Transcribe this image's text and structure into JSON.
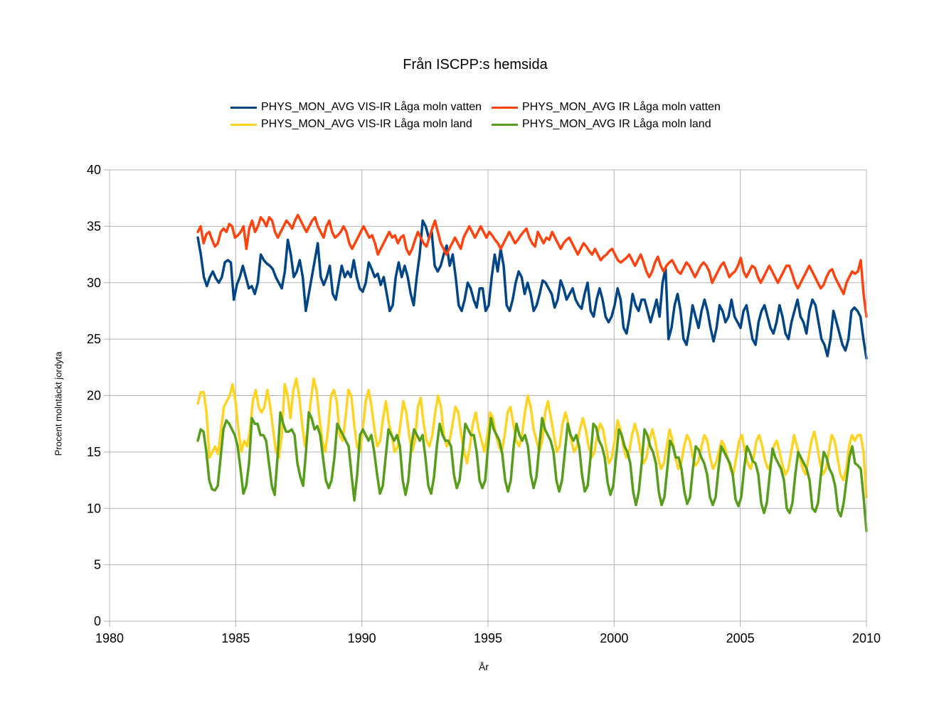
{
  "chart_data": {
    "type": "line",
    "title": "Från ISCPP:s hemsida",
    "xlabel": "År",
    "ylabel": "Procent molntäckt jordyta",
    "xlim": [
      1980,
      2010
    ],
    "ylim": [
      0,
      40
    ],
    "x_ticks": [
      "1980",
      "1985",
      "1990",
      "1995",
      "2000",
      "2005",
      "2010"
    ],
    "y_ticks": [
      "0",
      "5",
      "10",
      "15",
      "20",
      "25",
      "30",
      "35",
      "40"
    ],
    "grid": true,
    "legend_position": "top",
    "series": [
      {
        "name": "PHYS_MON_AVG VIS-IR Låga moln vatten",
        "color": "#004586",
        "x_start": 1983.5,
        "x_end": 2010.0,
        "values": [
          34.0,
          32.5,
          30.5,
          29.7,
          30.5,
          31.0,
          30.4,
          30.0,
          30.5,
          31.8,
          32.0,
          31.8,
          28.5,
          29.8,
          30.5,
          31.5,
          30.5,
          29.5,
          29.7,
          29.0,
          30.0,
          32.5,
          32.0,
          31.7,
          31.5,
          31.2,
          30.5,
          30.0,
          29.5,
          31.0,
          33.8,
          32.5,
          30.5,
          31.0,
          32.0,
          30.5,
          27.5,
          29.0,
          30.5,
          32.0,
          33.5,
          30.5,
          29.8,
          30.5,
          31.5,
          29.0,
          28.5,
          30.0,
          31.5,
          30.5,
          31.0,
          30.5,
          32.0,
          30.5,
          29.5,
          29.2,
          30.0,
          31.8,
          31.2,
          30.5,
          30.8,
          29.8,
          30.5,
          29.0,
          27.5,
          28.0,
          30.5,
          31.8,
          30.5,
          31.5,
          30.5,
          29.0,
          28.0,
          30.5,
          32.5,
          35.5,
          35.0,
          34.0,
          34.5,
          31.5,
          31.0,
          31.5,
          32.5,
          33.3,
          31.5,
          32.5,
          30.5,
          28.0,
          27.5,
          28.5,
          30.0,
          29.5,
          28.5,
          27.8,
          29.5,
          29.5,
          27.5,
          28.0,
          30.5,
          32.5,
          31.0,
          33.0,
          31.5,
          28.0,
          27.5,
          28.5,
          30.0,
          31.0,
          30.5,
          29.0,
          30.0,
          29.0,
          27.5,
          28.0,
          29.0,
          30.2,
          30.0,
          29.5,
          29.0,
          27.8,
          28.5,
          30.2,
          29.5,
          28.5,
          29.0,
          29.5,
          28.5,
          28.0,
          27.7,
          29.0,
          30.0,
          27.5,
          27.0,
          28.5,
          29.5,
          28.5,
          27.0,
          26.5,
          27.0,
          28.0,
          29.5,
          28.5,
          26.0,
          25.5,
          27.0,
          29.0,
          28.0,
          27.5,
          28.5,
          28.5,
          27.5,
          26.5,
          27.5,
          28.5,
          27.0,
          30.0,
          31.3,
          25.0,
          26.0,
          28.0,
          29.0,
          27.5,
          25.0,
          24.5,
          26.0,
          28.0,
          27.0,
          26.0,
          27.5,
          28.5,
          27.5,
          26.0,
          24.8,
          26.0,
          28.0,
          27.5,
          26.5,
          27.0,
          28.5,
          27.0,
          26.5,
          26.0,
          27.5,
          28.0,
          26.5,
          25.0,
          24.5,
          26.5,
          27.5,
          28.0,
          27.0,
          26.0,
          25.5,
          26.5,
          28.0,
          27.0,
          25.5,
          25.0,
          26.5,
          27.5,
          28.5,
          27.0,
          26.5,
          25.5,
          27.5,
          28.5,
          28.0,
          26.5,
          25.0,
          24.5,
          23.5,
          25.0,
          27.5,
          26.5,
          25.5,
          24.5,
          24.0,
          25.0,
          27.5,
          27.8,
          27.5,
          27.0,
          25.0,
          23.3
        ]
      },
      {
        "name": "PHYS_MON_AVG IR Låga moln vatten",
        "color": "#ff420e",
        "x_start": 1983.5,
        "x_end": 2010.0,
        "values": [
          34.5,
          35.0,
          33.5,
          34.3,
          34.5,
          33.8,
          33.2,
          33.5,
          34.5,
          34.8,
          34.5,
          35.2,
          35.0,
          34.0,
          34.2,
          34.5,
          35.0,
          33.0,
          34.8,
          35.5,
          34.5,
          35.0,
          35.8,
          35.5,
          35.0,
          35.8,
          35.5,
          34.5,
          34.0,
          34.5,
          35.0,
          35.5,
          35.2,
          34.8,
          35.5,
          36.0,
          35.5,
          35.0,
          34.5,
          35.0,
          35.5,
          35.8,
          35.0,
          34.5,
          34.0,
          35.0,
          35.5,
          34.5,
          34.0,
          34.2,
          34.5,
          35.0,
          34.5,
          33.5,
          33.0,
          33.5,
          34.0,
          34.5,
          35.0,
          34.5,
          34.0,
          34.2,
          33.5,
          32.5,
          33.0,
          33.5,
          34.0,
          34.5,
          34.0,
          34.2,
          33.5,
          34.0,
          34.2,
          33.0,
          32.5,
          33.0,
          33.8,
          34.5,
          34.0,
          33.5,
          33.2,
          34.0,
          34.8,
          35.5,
          34.5,
          33.5,
          33.0,
          32.5,
          33.0,
          33.5,
          34.0,
          33.5,
          33.0,
          34.0,
          34.5,
          35.0,
          34.5,
          34.0,
          34.5,
          35.0,
          34.5,
          34.0,
          34.5,
          34.2,
          33.8,
          33.5,
          33.0,
          33.5,
          34.0,
          34.5,
          34.0,
          33.5,
          33.8,
          34.2,
          34.5,
          34.8,
          34.0,
          33.5,
          33.2,
          34.5,
          34.0,
          33.5,
          34.0,
          33.8,
          34.5,
          34.0,
          33.5,
          33.0,
          33.5,
          33.8,
          34.0,
          33.5,
          33.0,
          32.5,
          33.0,
          33.5,
          33.2,
          32.8,
          32.5,
          33.0,
          32.5,
          32.0,
          32.3,
          32.5,
          32.8,
          33.0,
          32.5,
          32.0,
          31.8,
          32.0,
          32.2,
          32.5,
          32.0,
          31.5,
          32.0,
          32.5,
          31.8,
          31.0,
          30.5,
          31.0,
          31.8,
          32.3,
          31.5,
          31.0,
          31.5,
          31.8,
          32.0,
          31.5,
          31.0,
          30.8,
          31.3,
          31.8,
          31.5,
          31.0,
          30.5,
          31.0,
          31.5,
          31.8,
          31.5,
          31.0,
          30.0,
          30.5,
          31.0,
          31.5,
          31.8,
          31.2,
          30.5,
          30.8,
          31.0,
          31.5,
          32.2,
          31.0,
          30.5,
          31.0,
          31.5,
          31.3,
          30.5,
          30.0,
          30.5,
          31.0,
          31.5,
          31.0,
          30.5,
          30.0,
          30.5,
          31.0,
          31.5,
          31.5,
          30.8,
          30.0,
          29.5,
          30.0,
          30.5,
          31.0,
          31.5,
          31.0,
          30.5,
          30.0,
          29.5,
          29.8,
          30.5,
          31.0,
          31.2,
          30.5,
          30.0,
          29.5,
          29.0,
          30.0,
          30.5,
          31.0,
          30.8,
          31.0,
          32.0,
          29.0,
          27.0
        ]
      },
      {
        "name": "PHYS_MON_AVG VIS-IR Låga moln land",
        "color": "#ffd320",
        "x_start": 1983.5,
        "x_end": 2010.0,
        "values": [
          19.3,
          20.3,
          20.3,
          18.5,
          14.5,
          15.0,
          15.5,
          14.8,
          17.0,
          19.0,
          19.5,
          20.0,
          21.0,
          19.5,
          17.0,
          15.0,
          16.0,
          15.5,
          17.0,
          19.5,
          20.5,
          19.0,
          18.5,
          19.0,
          20.5,
          19.0,
          17.0,
          15.0,
          14.5,
          16.5,
          21.0,
          20.0,
          18.0,
          20.5,
          21.5,
          20.0,
          17.5,
          15.5,
          17.0,
          19.5,
          21.5,
          20.5,
          18.0,
          16.0,
          15.0,
          17.0,
          20.0,
          20.5,
          19.5,
          16.5,
          16.0,
          18.0,
          20.5,
          20.0,
          17.5,
          15.5,
          15.0,
          17.0,
          19.5,
          20.5,
          19.0,
          17.0,
          15.5,
          16.0,
          18.0,
          19.5,
          17.5,
          16.5,
          15.0,
          15.5,
          17.5,
          19.5,
          18.5,
          16.5,
          15.0,
          16.0,
          19.0,
          19.8,
          17.5,
          16.0,
          15.5,
          16.5,
          18.5,
          20.0,
          19.0,
          16.5,
          15.5,
          16.0,
          17.5,
          19.0,
          18.5,
          16.5,
          15.0,
          14.0,
          15.5,
          17.5,
          18.5,
          17.0,
          16.0,
          15.0,
          16.5,
          18.5,
          18.0,
          16.5,
          15.5,
          15.0,
          16.5,
          18.5,
          19.0,
          17.5,
          16.0,
          15.5,
          16.5,
          18.5,
          20.0,
          19.0,
          17.0,
          16.0,
          15.0,
          16.0,
          18.5,
          19.5,
          18.0,
          16.5,
          15.0,
          15.5,
          17.5,
          18.5,
          17.5,
          16.0,
          15.0,
          15.5,
          17.0,
          18.0,
          17.0,
          15.5,
          14.5,
          15.0,
          16.5,
          17.5,
          17.0,
          15.5,
          14.0,
          14.5,
          16.0,
          17.8,
          17.0,
          15.5,
          14.5,
          15.0,
          16.5,
          17.5,
          16.5,
          15.0,
          14.0,
          14.5,
          16.0,
          17.0,
          16.0,
          14.5,
          13.5,
          14.0,
          15.5,
          17.0,
          16.0,
          14.5,
          13.5,
          14.0,
          15.5,
          16.5,
          16.0,
          14.5,
          13.8,
          14.2,
          15.5,
          16.5,
          16.0,
          14.5,
          13.5,
          14.0,
          15.0,
          16.0,
          15.5,
          14.5,
          13.5,
          13.0,
          14.5,
          16.0,
          16.5,
          15.0,
          14.0,
          13.5,
          14.5,
          16.0,
          16.5,
          15.5,
          14.2,
          13.5,
          14.0,
          15.5,
          16.0,
          15.0,
          13.8,
          13.0,
          13.5,
          15.0,
          16.5,
          15.5,
          14.5,
          13.5,
          13.0,
          14.5,
          16.0,
          16.8,
          15.5,
          14.0,
          13.0,
          13.5,
          15.0,
          16.5,
          16.0,
          14.5,
          13.0,
          12.5,
          13.5,
          15.5,
          16.5,
          16.0,
          16.5,
          16.5,
          15.0,
          11.0
        ]
      },
      {
        "name": "PHYS_MON_AVG IR Låga moln land",
        "color": "#579d1c",
        "x_start": 1983.5,
        "x_end": 2010.0,
        "values": [
          16.0,
          17.0,
          16.8,
          15.0,
          12.5,
          11.7,
          11.6,
          12.0,
          14.5,
          17.0,
          17.8,
          17.5,
          17.0,
          16.5,
          15.5,
          13.5,
          11.3,
          12.0,
          14.0,
          18.0,
          17.5,
          17.5,
          16.5,
          16.5,
          16.0,
          14.0,
          12.0,
          11.2,
          14.5,
          18.5,
          17.5,
          16.8,
          16.8,
          17.0,
          16.5,
          14.0,
          12.8,
          12.0,
          15.0,
          18.5,
          18.0,
          17.0,
          17.3,
          16.5,
          14.5,
          12.5,
          11.8,
          12.5,
          14.5,
          17.5,
          17.0,
          16.5,
          16.0,
          15.5,
          13.0,
          10.7,
          13.0,
          16.5,
          17.0,
          16.5,
          16.0,
          16.5,
          15.0,
          13.0,
          11.3,
          12.0,
          14.5,
          17.0,
          16.5,
          16.0,
          16.5,
          15.5,
          12.5,
          11.2,
          12.5,
          15.5,
          17.0,
          16.5,
          16.0,
          16.5,
          14.5,
          12.0,
          11.3,
          12.8,
          15.5,
          17.5,
          16.5,
          16.0,
          16.0,
          15.5,
          13.0,
          11.8,
          12.5,
          15.0,
          17.5,
          17.0,
          16.5,
          16.5,
          15.0,
          12.5,
          11.8,
          12.5,
          15.5,
          18.0,
          17.0,
          16.5,
          16.0,
          14.8,
          12.5,
          11.5,
          12.5,
          15.5,
          17.5,
          16.5,
          16.0,
          16.5,
          15.5,
          13.0,
          11.8,
          12.8,
          15.5,
          18.0,
          17.0,
          16.5,
          16.0,
          15.0,
          12.5,
          11.5,
          12.5,
          15.0,
          17.5,
          16.5,
          16.0,
          16.5,
          15.5,
          13.0,
          11.5,
          12.0,
          14.5,
          17.5,
          17.2,
          16.0,
          15.5,
          14.5,
          12.3,
          11.2,
          12.0,
          14.5,
          17.0,
          16.5,
          15.5,
          15.0,
          14.0,
          11.5,
          10.3,
          11.5,
          14.0,
          17.0,
          16.5,
          15.5,
          15.0,
          14.0,
          11.5,
          10.3,
          11.0,
          13.5,
          16.0,
          15.5,
          14.5,
          14.5,
          13.5,
          11.5,
          10.4,
          11.0,
          13.5,
          15.5,
          15.2,
          14.5,
          14.0,
          13.0,
          11.0,
          10.3,
          11.0,
          13.5,
          15.5,
          15.0,
          14.5,
          14.0,
          13.0,
          10.8,
          10.2,
          11.0,
          13.5,
          15.5,
          15.0,
          14.2,
          14.0,
          13.0,
          10.5,
          9.6,
          10.5,
          13.0,
          15.3,
          14.5,
          14.0,
          13.5,
          12.5,
          10.0,
          9.6,
          10.5,
          13.0,
          15.0,
          14.5,
          14.0,
          13.5,
          12.5,
          10.0,
          9.7,
          10.5,
          13.0,
          15.0,
          14.5,
          13.5,
          13.0,
          12.0,
          9.8,
          9.3,
          10.5,
          12.5,
          14.5,
          15.5,
          14.0,
          13.8,
          13.5,
          11.0,
          8.0
        ]
      }
    ]
  }
}
